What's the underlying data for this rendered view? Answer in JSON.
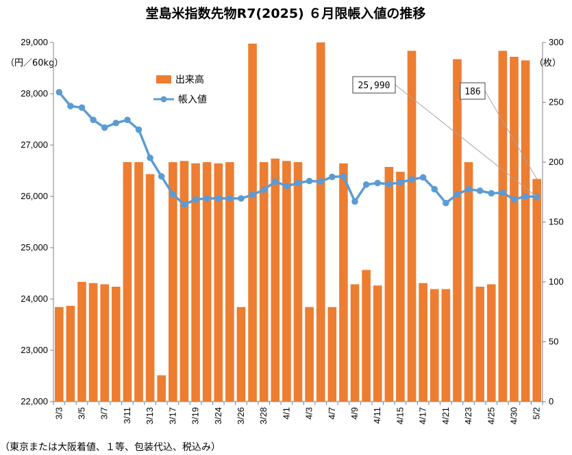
{
  "chart_data": {
    "type": "bar+line",
    "title": "堂島米指数先物R7(2025) ６月限帳入値の推移",
    "left_axis": {
      "unit_label": "（円／60kg）",
      "range": [
        22000,
        29000
      ],
      "ticks": [
        "22,000",
        "23,000",
        "24,000",
        "25,000",
        "26,000",
        "27,000",
        "28,000",
        "29,000"
      ]
    },
    "right_axis": {
      "unit_label": "（枚）",
      "range": [
        0,
        300
      ],
      "ticks": [
        "0",
        "50",
        "100",
        "150",
        "200",
        "250",
        "300"
      ]
    },
    "x_labels": [
      "3/3",
      "3/5",
      "3/7",
      "3/11",
      "3/13",
      "3/17",
      "3/19",
      "3/24",
      "3/26",
      "3/28",
      "4/1",
      "4/3",
      "4/7",
      "4/9",
      "4/11",
      "4/15",
      "4/17",
      "4/21",
      "4/23",
      "4/25",
      "4/30",
      "5/2"
    ],
    "series": [
      {
        "name": "出来高",
        "type": "bar",
        "axis": "right",
        "color": "#ed7d31",
        "values": [
          79,
          80,
          100,
          99,
          98,
          96,
          200,
          200,
          190,
          22,
          200,
          201,
          199,
          200,
          199,
          200,
          79,
          299,
          200,
          203,
          201,
          200,
          79,
          300,
          79,
          199,
          98,
          110,
          97,
          196,
          192,
          293,
          99,
          94,
          94,
          286,
          200,
          96,
          98,
          293,
          288,
          285,
          186
        ]
      },
      {
        "name": "帳入値",
        "type": "line",
        "axis": "left",
        "color": "#5b9bd5",
        "values": [
          28030,
          27760,
          27730,
          27490,
          27340,
          27430,
          27490,
          27300,
          26750,
          26390,
          26040,
          25840,
          25940,
          25960,
          25960,
          25960,
          25960,
          26030,
          26130,
          26290,
          26200,
          26260,
          26300,
          26290,
          26380,
          26390,
          25900,
          26230,
          26260,
          26240,
          26270,
          26330,
          26370,
          26140,
          25870,
          26040,
          26140,
          26110,
          26060,
          26070,
          25940,
          26000,
          25990
        ]
      }
    ],
    "annotations": [
      {
        "text": "25,990",
        "target_series": "帳入値",
        "target_index": 42
      },
      {
        "text": "186",
        "target_series": "出来高",
        "target_index": 42
      }
    ],
    "note": "（東京または大阪着値、１等、包装代込、税込み）",
    "legend_position": "top-left"
  }
}
